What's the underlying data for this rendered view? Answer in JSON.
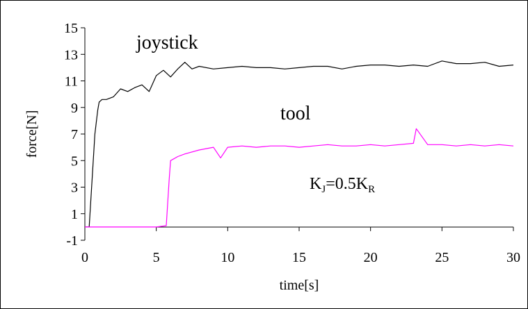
{
  "chart_data": {
    "type": "line",
    "title": "",
    "xlabel": "time[s]",
    "ylabel": "force[N]",
    "xlim": [
      0,
      30
    ],
    "ylim": [
      -1,
      15
    ],
    "x_ticks": [
      0,
      5,
      10,
      15,
      20,
      25,
      30
    ],
    "y_ticks": [
      -1,
      1,
      3,
      5,
      7,
      9,
      11,
      13,
      15
    ],
    "grid": false,
    "legend": "none",
    "annotations": {
      "joystick_label": "joystick",
      "tool_label": "tool",
      "gain_relation": {
        "base1": "K",
        "sub1": "J",
        "mid": "=0.5K",
        "sub2": "R"
      }
    },
    "series": [
      {
        "name": "joystick",
        "color": "#000000",
        "x": [
          0,
          0.3,
          0.5,
          0.7,
          0.9,
          1.0,
          1.2,
          1.5,
          2.0,
          2.5,
          3.0,
          3.5,
          4.0,
          4.5,
          5.0,
          5.5,
          6.0,
          6.5,
          7.0,
          7.5,
          8.0,
          9.0,
          10.0,
          11.0,
          12.0,
          13.0,
          14.0,
          15.0,
          16.0,
          17.0,
          18.0,
          19.0,
          20.0,
          21.0,
          22.0,
          23.0,
          24.0,
          25.0,
          26.0,
          27.0,
          28.0,
          29.0,
          30.0
        ],
        "y": [
          0,
          0,
          3.5,
          7.0,
          8.8,
          9.4,
          9.6,
          9.6,
          9.8,
          10.4,
          10.2,
          10.5,
          10.7,
          10.2,
          11.4,
          11.8,
          11.3,
          11.9,
          12.4,
          11.9,
          12.1,
          11.9,
          12.0,
          12.1,
          12.0,
          12.0,
          11.9,
          12.0,
          12.1,
          12.1,
          11.9,
          12.1,
          12.2,
          12.2,
          12.1,
          12.2,
          12.1,
          12.5,
          12.3,
          12.3,
          12.4,
          12.1,
          12.2
        ]
      },
      {
        "name": "tool",
        "color": "#ff00ff",
        "x": [
          0,
          1,
          2,
          3,
          4,
          5,
          5.7,
          5.9,
          6.0,
          6.5,
          7,
          8,
          9,
          9.5,
          10,
          11,
          12,
          13,
          14,
          15,
          16,
          17,
          18,
          19,
          20,
          21,
          22,
          23,
          23.2,
          24,
          25,
          26,
          27,
          28,
          29,
          30
        ],
        "y": [
          0,
          0,
          0,
          0,
          0,
          0,
          0.1,
          3.5,
          5.0,
          5.3,
          5.5,
          5.8,
          6.0,
          5.2,
          6.0,
          6.1,
          6.0,
          6.1,
          6.1,
          6.0,
          6.1,
          6.2,
          6.1,
          6.1,
          6.2,
          6.1,
          6.2,
          6.3,
          7.4,
          6.2,
          6.2,
          6.1,
          6.2,
          6.1,
          6.2,
          6.1
        ]
      }
    ]
  }
}
